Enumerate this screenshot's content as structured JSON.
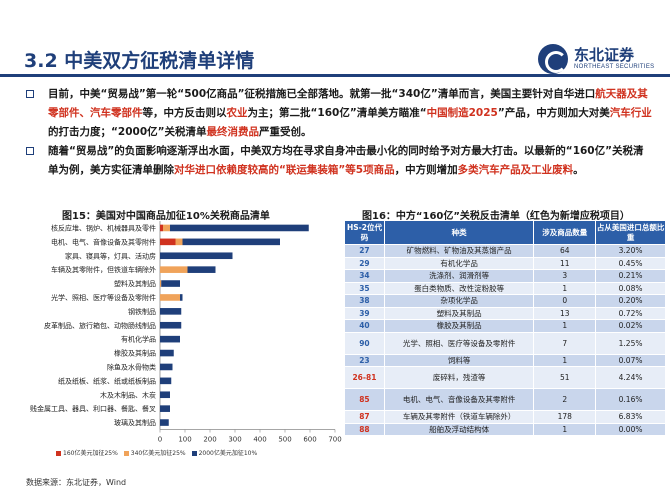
{
  "header": {
    "title": "3.2 中美双方征税清单详情",
    "logo_name": "东北证券",
    "logo_en": "NORTHEAST SECURITIES"
  },
  "bullets": [
    {
      "parts": [
        {
          "t": "目前，中美“贸易战”第一轮“500亿商品”征税措施已全部落地。就第一批“340亿”清单而言，美国主要针对自华进口"
        },
        {
          "t": "航天器及其零部件、汽车零部件",
          "hl": true
        },
        {
          "t": "等，中方反击则以"
        },
        {
          "t": "农业",
          "hl": true
        },
        {
          "t": "为主；第二批“160亿”清单美方瞄准“"
        },
        {
          "t": "中国制造2025",
          "hl": true
        },
        {
          "t": "”产品，中方则加大对美"
        },
        {
          "t": "汽车行业",
          "hl": true
        },
        {
          "t": "的打击力度；“2000亿”关税清单"
        },
        {
          "t": "最终消费品",
          "hl": true
        },
        {
          "t": "严重受创。"
        }
      ]
    },
    {
      "parts": [
        {
          "t": "随着“贸易战”的负面影响逐渐浮出水面，中美双方均在寻求自身冲击最小化的同时给予对方最大打击。以最新的“160亿”关税清单为例，美方实征清单删除"
        },
        {
          "t": "对华进口依赖度较高的“联运集装箱”等5项商品",
          "hl": true
        },
        {
          "t": "，中方则增加"
        },
        {
          "t": "多类汽车产品及工业废料",
          "hl": true
        },
        {
          "t": "。"
        }
      ]
    }
  ],
  "figures": {
    "fig15_title": "图15：美国对中国商品加征10%关税商品清单",
    "fig16_title": "图16：中方“160亿”关税反击清单（红色为新增应税项目）"
  },
  "chart_data": {
    "type": "bar",
    "orientation": "horizontal",
    "stacked": true,
    "categories": [
      "核反应堆、锅炉、机械器具及零件",
      "电机、电气、音像设备及其零附件",
      "家具、寝具等，灯具、活动房",
      "车辆及其零附件，但铁道车辆除外",
      "塑料及其制品",
      "光学、照相、医疗等设备及零附件",
      "钢铁制品",
      "皮革制品、旅行箱包、动物肠线制品",
      "有机化学品",
      "橡胶及其制品",
      "除鱼及水骨物类",
      "纸及纸板、纸浆、纸或纸板制品",
      "木及木制品、木炭",
      "贱金属工具、器具、利口器、餐匙、餐叉",
      "玻璃及其制品"
    ],
    "series": [
      {
        "name": "160亿美元加征25%",
        "color": "#d0321f",
        "values": [
          12,
          62,
          0,
          0,
          0,
          0,
          0,
          0,
          0,
          0,
          0,
          0,
          0,
          0,
          0
        ]
      },
      {
        "name": "340亿美元加征25%",
        "color": "#f0a35a",
        "values": [
          28,
          28,
          0,
          110,
          5,
          80,
          0,
          0,
          0,
          0,
          0,
          0,
          0,
          0,
          0
        ]
      },
      {
        "name": "2000亿美元加征10%",
        "color": "#1f3f7a",
        "values": [
          555,
          390,
          290,
          112,
          75,
          10,
          85,
          85,
          80,
          55,
          50,
          45,
          40,
          40,
          35
        ]
      }
    ],
    "xlim": [
      0,
      700
    ],
    "xticks": [
      "0",
      "100",
      "200",
      "300",
      "400",
      "500",
      "600",
      "700"
    ]
  },
  "table": {
    "headers": [
      "HS-2位代码",
      "种类",
      "涉及商品数量",
      "占从美国进口总额比重"
    ],
    "rows": [
      {
        "code": "27",
        "name": "矿物燃料、矿物油及其蒸馏产品",
        "count": "64",
        "share": "3.20%",
        "red": false
      },
      {
        "code": "29",
        "name": "有机化学品",
        "count": "11",
        "share": "0.45%",
        "red": false
      },
      {
        "code": "34",
        "name": "洗涤剂、润滑剂等",
        "count": "3",
        "share": "0.21%",
        "red": false
      },
      {
        "code": "35",
        "name": "蛋白类物质、改性淀粉胶等",
        "count": "1",
        "share": "0.08%",
        "red": false
      },
      {
        "code": "38",
        "name": "杂项化学品",
        "count": "0",
        "share": "0.20%",
        "red": false
      },
      {
        "code": "39",
        "name": "塑料及其制品",
        "count": "13",
        "share": "0.72%",
        "red": false
      },
      {
        "code": "40",
        "name": "橡胶及其制品",
        "count": "1",
        "share": "0.02%",
        "red": false
      },
      {
        "code": "90",
        "name": "光学、照相、医疗等设备及零附件",
        "count": "7",
        "share": "1.25%",
        "red": false,
        "tall": true
      },
      {
        "code": "23",
        "name": "饲料等",
        "count": "1",
        "share": "0.07%",
        "red": false
      },
      {
        "code": "26-81",
        "name": "废碎料，残渣等",
        "count": "51",
        "share": "4.24%",
        "red": true,
        "tall": true
      },
      {
        "code": "85",
        "name": "电机、电气、音像设备及其零附件",
        "count": "2",
        "share": "0.16%",
        "red": true,
        "tall": true
      },
      {
        "code": "87",
        "name": "车辆及其零附件（铁道车辆除外）",
        "count": "178",
        "share": "6.83%",
        "red": true
      },
      {
        "code": "88",
        "name": "船舶及浮动结构体",
        "count": "1",
        "share": "0.00%",
        "red": true
      }
    ]
  },
  "source": "数据来源：东北证券，Wind"
}
